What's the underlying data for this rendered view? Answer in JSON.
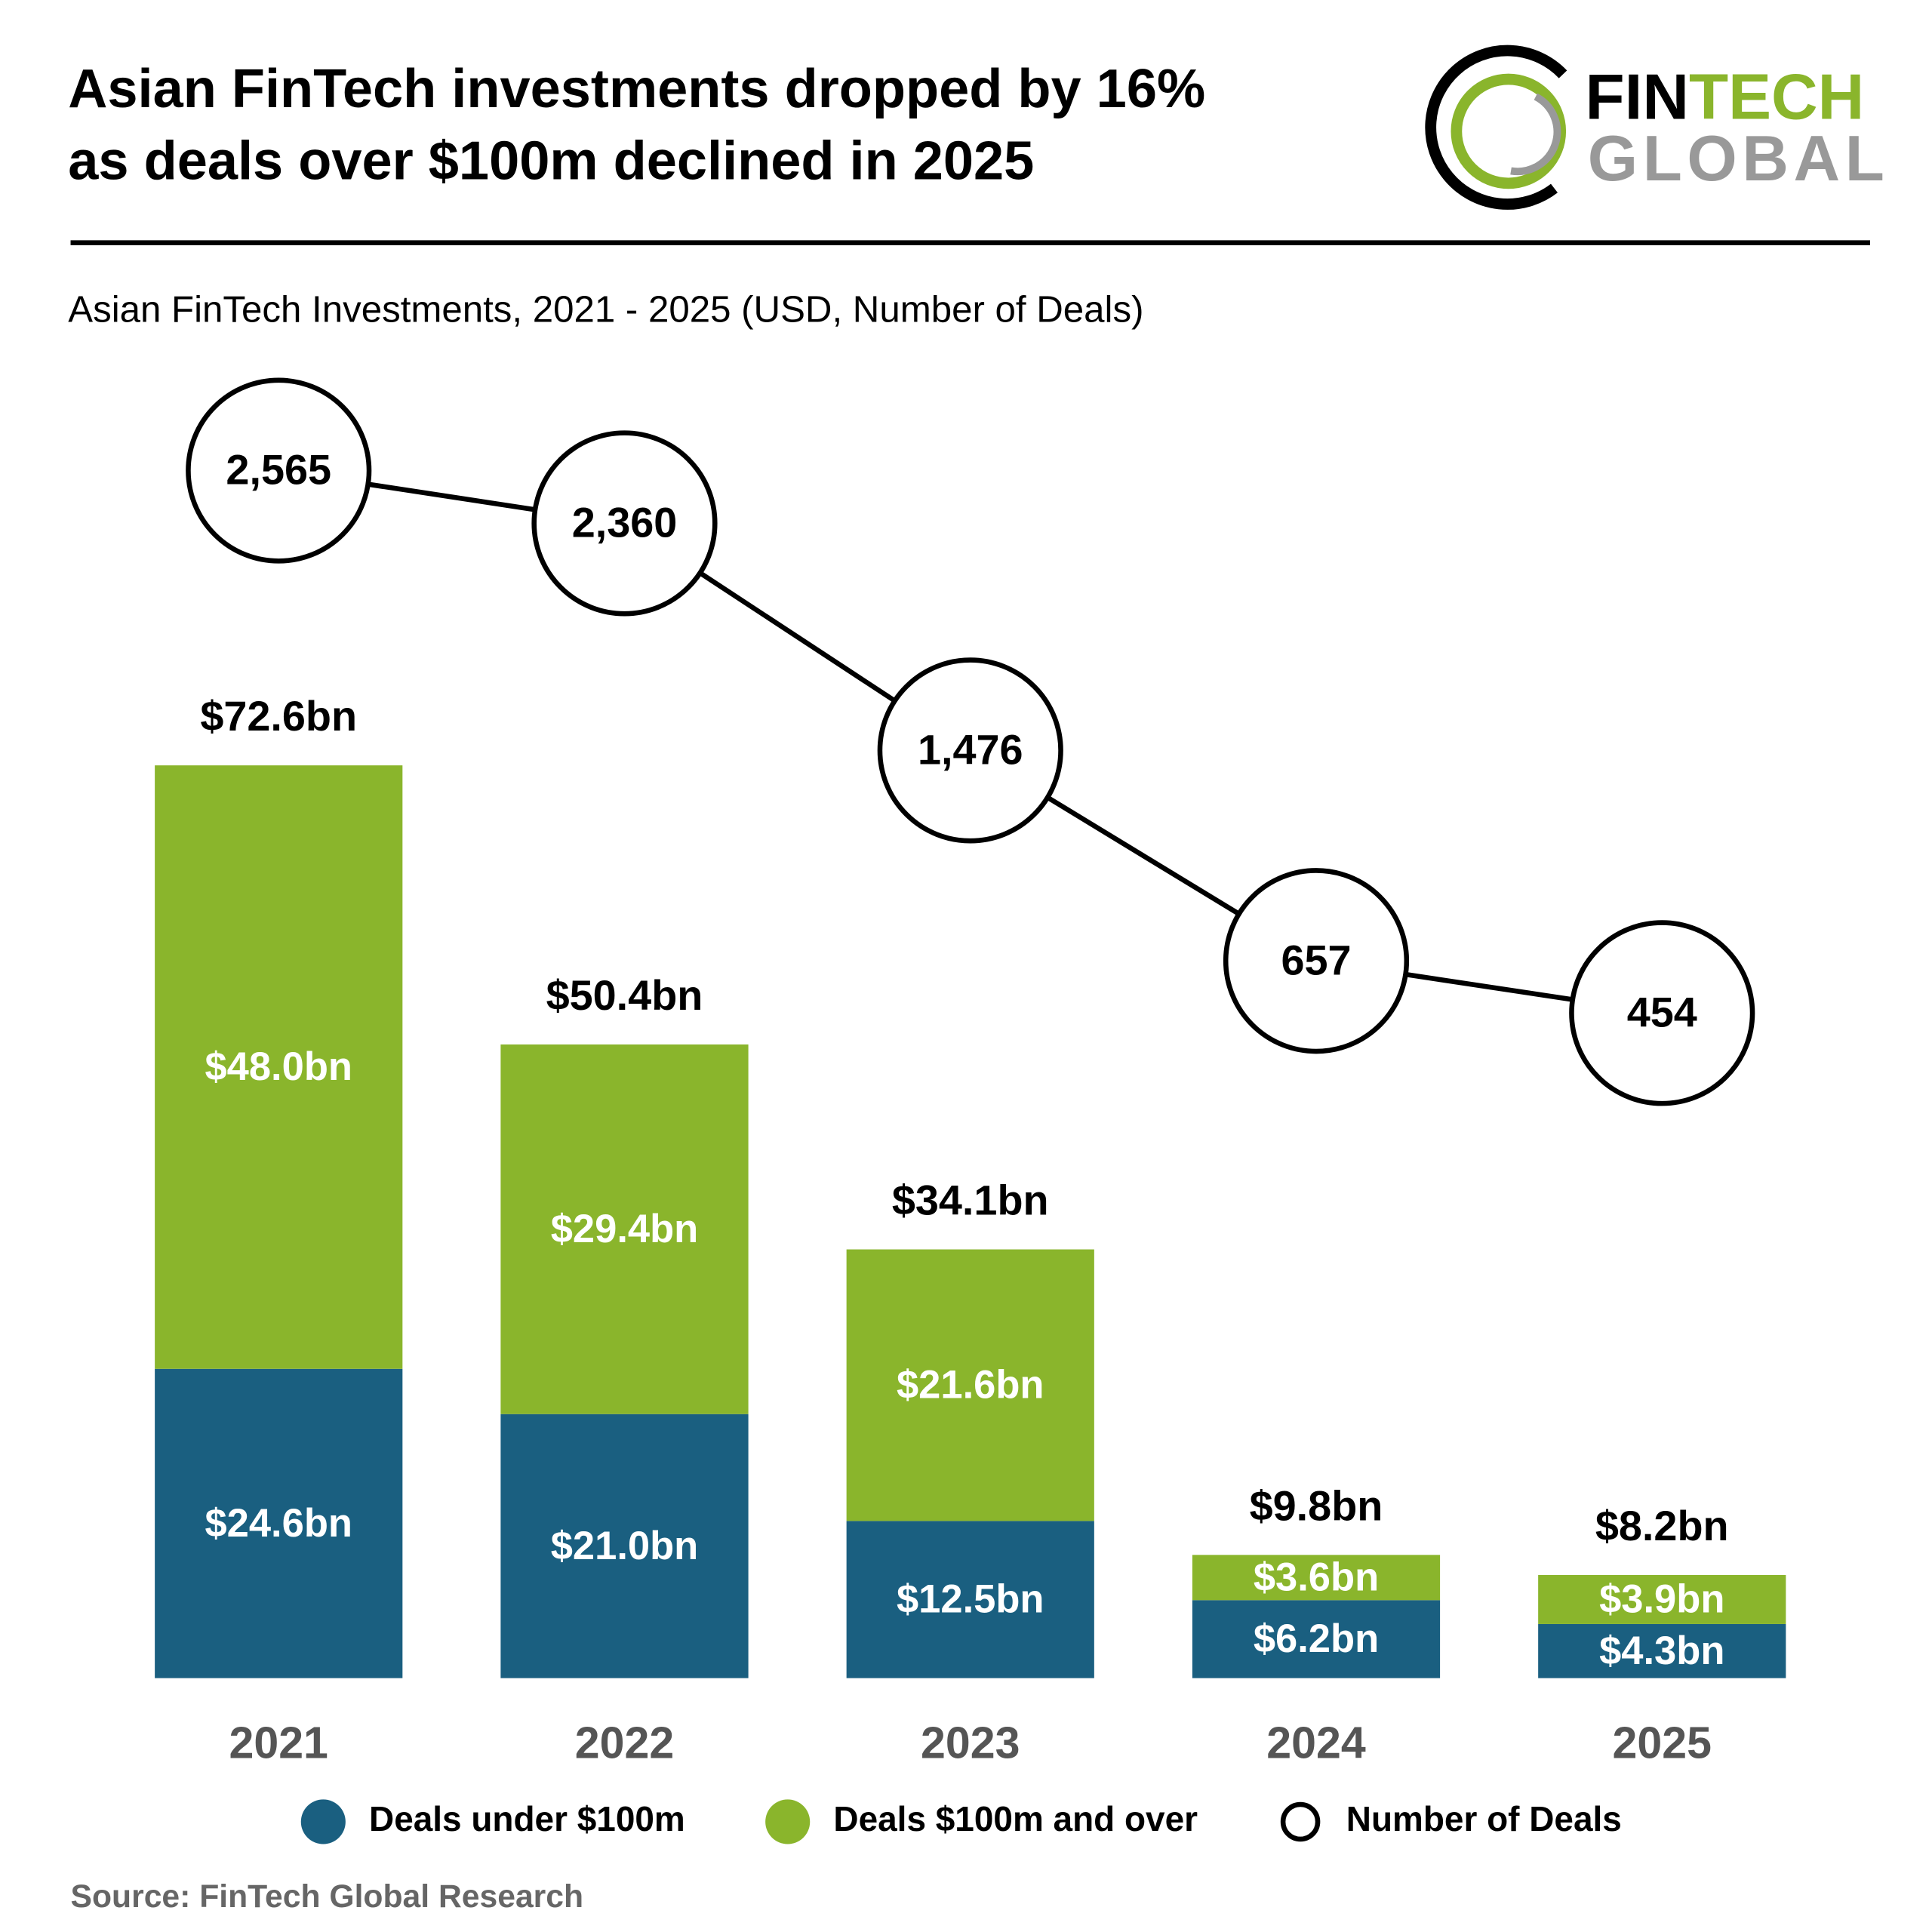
{
  "chart_data": {
    "type": "bar",
    "stacked": true,
    "title": [
      "Asian FinTech investments dropped by 16%",
      "as deals over $100m declined in 2025"
    ],
    "subtitle": "Asian FinTech Investments, 2021 - 2025 (USD, Number of Deals)",
    "source": "Source: FinTech Global Research",
    "logo": {
      "part1": "FIN",
      "part2": "TECH",
      "part3": "GLOBAL"
    },
    "categories": [
      "2021",
      "2022",
      "2023",
      "2024",
      "2025"
    ],
    "series": [
      {
        "name": "Deals under $100m",
        "color": "#1a5f80",
        "values": [
          24.6,
          21.0,
          12.5,
          6.2,
          4.3
        ],
        "value_labels": [
          "$24.6bn",
          "$21.0bn",
          "$12.5bn",
          "$6.2bn",
          "$4.3bn"
        ]
      },
      {
        "name": "Deals $100m and over",
        "color": "#8ab52c",
        "values": [
          48.0,
          29.4,
          21.6,
          3.6,
          3.9
        ],
        "value_labels": [
          "$48.0bn",
          "$29.4bn",
          "$21.6bn",
          "$3.6bn",
          "$3.9bn"
        ]
      },
      {
        "name": "Number of Deals",
        "type": "line",
        "axis": "y2",
        "color": "#000000",
        "values": [
          2565,
          2360,
          1476,
          657,
          454
        ],
        "value_labels": [
          "2,565",
          "2,360",
          "1,476",
          "657",
          "454"
        ]
      }
    ],
    "totals": {
      "values": [
        72.6,
        50.4,
        34.1,
        9.8,
        8.2
      ],
      "value_labels": [
        "$72.6bn",
        "$50.4bn",
        "$34.1bn",
        "$9.8bn",
        "$8.2bn"
      ]
    }
  }
}
